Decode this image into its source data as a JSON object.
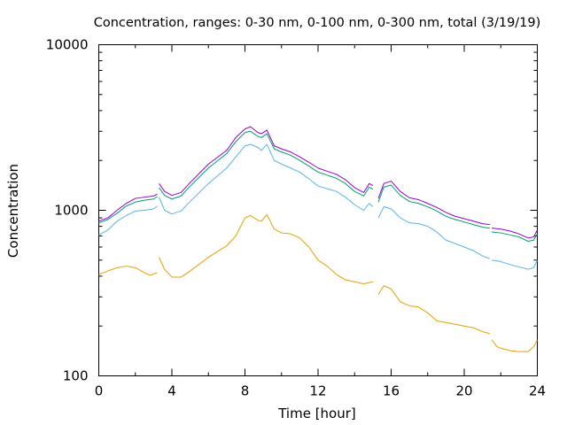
{
  "chart_data": {
    "type": "line",
    "title": "Concentration, ranges: 0-30 nm, 0-100 nm, 0-300 nm, total (3/19/19)",
    "xlabel": "Time [hour]",
    "ylabel": "Concentration",
    "xlim": [
      0,
      24
    ],
    "ylim": [
      100,
      10000
    ],
    "yscale": "log",
    "xticks": [
      "0",
      "4",
      "8",
      "12",
      "16",
      "20",
      "24"
    ],
    "yticks": [
      "100",
      "1000",
      "10000"
    ],
    "grid": false,
    "legend": "none",
    "series": [
      {
        "color": "#e69f00",
        "segments": [
          [
            [
              0,
              410
            ],
            [
              0.5,
              430
            ],
            [
              1,
              450
            ],
            [
              1.5,
              460
            ],
            [
              2,
              450
            ],
            [
              2.5,
              420
            ],
            [
              2.8,
              405
            ],
            [
              3.2,
              420
            ]
          ],
          [
            [
              3.3,
              520
            ],
            [
              3.6,
              440
            ],
            [
              4,
              395
            ],
            [
              4.5,
              395
            ],
            [
              5,
              430
            ],
            [
              6,
              520
            ],
            [
              7,
              610
            ],
            [
              7.5,
              700
            ],
            [
              8,
              900
            ],
            [
              8.3,
              930
            ],
            [
              8.7,
              870
            ],
            [
              8.9,
              860
            ],
            [
              9.2,
              940
            ],
            [
              9.6,
              770
            ],
            [
              10,
              730
            ],
            [
              10.5,
              720
            ],
            [
              11,
              680
            ],
            [
              11.5,
              600
            ],
            [
              12,
              500
            ],
            [
              12.5,
              460
            ],
            [
              13,
              410
            ],
            [
              13.5,
              380
            ],
            [
              14,
              370
            ],
            [
              14.5,
              360
            ],
            [
              15,
              370
            ]
          ],
          [
            [
              15.3,
              310
            ],
            [
              15.6,
              350
            ],
            [
              16,
              335
            ],
            [
              16.5,
              280
            ],
            [
              17,
              265
            ],
            [
              17.5,
              260
            ],
            [
              18,
              240
            ],
            [
              18.5,
              215
            ],
            [
              19,
              210
            ],
            [
              19.5,
              205
            ],
            [
              20,
              200
            ],
            [
              20.5,
              195
            ],
            [
              21,
              185
            ],
            [
              21.4,
              180
            ]
          ],
          [
            [
              21.5,
              165
            ],
            [
              21.8,
              150
            ],
            [
              22,
              147
            ],
            [
              22.5,
              142
            ],
            [
              23,
              140
            ],
            [
              23.5,
              140
            ],
            [
              23.8,
              150
            ],
            [
              24,
              165
            ]
          ]
        ]
      },
      {
        "color": "#56b4e9",
        "segments": [
          [
            [
              0,
              710
            ],
            [
              0.5,
              760
            ],
            [
              1,
              860
            ],
            [
              1.5,
              930
            ],
            [
              2,
              990
            ],
            [
              2.5,
              1000
            ],
            [
              3,
              1020
            ],
            [
              3.2,
              1060
            ]
          ],
          [
            [
              3.3,
              1200
            ],
            [
              3.6,
              1000
            ],
            [
              4,
              950
            ],
            [
              4.5,
              990
            ],
            [
              5,
              1130
            ],
            [
              6,
              1450
            ],
            [
              7,
              1800
            ],
            [
              7.5,
              2100
            ],
            [
              8,
              2450
            ],
            [
              8.3,
              2500
            ],
            [
              8.7,
              2400
            ],
            [
              8.9,
              2300
            ],
            [
              9.2,
              2500
            ],
            [
              9.6,
              2000
            ],
            [
              10,
              1900
            ],
            [
              10.5,
              1800
            ],
            [
              11,
              1700
            ],
            [
              11.5,
              1550
            ],
            [
              12,
              1400
            ],
            [
              12.5,
              1350
            ],
            [
              13,
              1300
            ],
            [
              13.5,
              1200
            ],
            [
              14,
              1080
            ],
            [
              14.5,
              1000
            ],
            [
              14.8,
              1100
            ],
            [
              15,
              1050
            ]
          ],
          [
            [
              15.3,
              900
            ],
            [
              15.6,
              1050
            ],
            [
              16,
              1020
            ],
            [
              16.5,
              900
            ],
            [
              17,
              840
            ],
            [
              17.5,
              830
            ],
            [
              18,
              800
            ],
            [
              18.5,
              740
            ],
            [
              19,
              660
            ],
            [
              19.5,
              630
            ],
            [
              20,
              600
            ],
            [
              20.5,
              570
            ],
            [
              21,
              530
            ],
            [
              21.4,
              510
            ]
          ],
          [
            [
              21.5,
              500
            ],
            [
              22,
              490
            ],
            [
              22.5,
              470
            ],
            [
              23,
              455
            ],
            [
              23.5,
              440
            ],
            [
              23.8,
              450
            ],
            [
              24,
              500
            ]
          ]
        ]
      },
      {
        "color": "#009e73",
        "segments": [
          [
            [
              0,
              840
            ],
            [
              0.5,
              880
            ],
            [
              1,
              960
            ],
            [
              1.5,
              1060
            ],
            [
              2,
              1120
            ],
            [
              2.5,
              1150
            ],
            [
              3,
              1170
            ],
            [
              3.2,
              1210
            ]
          ],
          [
            [
              3.3,
              1370
            ],
            [
              3.6,
              1230
            ],
            [
              4,
              1170
            ],
            [
              4.5,
              1220
            ],
            [
              5,
              1400
            ],
            [
              6,
              1800
            ],
            [
              7,
              2200
            ],
            [
              7.5,
              2600
            ],
            [
              8,
              2950
            ],
            [
              8.3,
              3000
            ],
            [
              8.7,
              2800
            ],
            [
              8.9,
              2750
            ],
            [
              9.2,
              2900
            ],
            [
              9.6,
              2350
            ],
            [
              10,
              2250
            ],
            [
              10.5,
              2150
            ],
            [
              11,
              2000
            ],
            [
              11.5,
              1850
            ],
            [
              12,
              1700
            ],
            [
              12.5,
              1630
            ],
            [
              13,
              1560
            ],
            [
              13.5,
              1450
            ],
            [
              14,
              1300
            ],
            [
              14.5,
              1220
            ],
            [
              14.8,
              1380
            ],
            [
              15,
              1340
            ]
          ],
          [
            [
              15.3,
              1120
            ],
            [
              15.6,
              1380
            ],
            [
              16,
              1420
            ],
            [
              16.5,
              1230
            ],
            [
              17,
              1130
            ],
            [
              17.5,
              1100
            ],
            [
              18,
              1050
            ],
            [
              18.5,
              990
            ],
            [
              19,
              920
            ],
            [
              19.5,
              880
            ],
            [
              20,
              850
            ],
            [
              20.5,
              820
            ],
            [
              21,
              790
            ],
            [
              21.4,
              780
            ]
          ],
          [
            [
              21.5,
              740
            ],
            [
              22,
              730
            ],
            [
              22.5,
              710
            ],
            [
              23,
              690
            ],
            [
              23.5,
              650
            ],
            [
              23.8,
              660
            ],
            [
              24,
              720
            ]
          ]
        ]
      },
      {
        "color": "#9400d3",
        "segments": [
          [
            [
              0,
              860
            ],
            [
              0.5,
              900
            ],
            [
              1,
              1000
            ],
            [
              1.5,
              1100
            ],
            [
              2,
              1180
            ],
            [
              2.5,
              1200
            ],
            [
              3,
              1220
            ],
            [
              3.2,
              1250
            ]
          ],
          [
            [
              3.3,
              1450
            ],
            [
              3.6,
              1300
            ],
            [
              4,
              1230
            ],
            [
              4.5,
              1280
            ],
            [
              5,
              1470
            ],
            [
              6,
              1900
            ],
            [
              7,
              2300
            ],
            [
              7.5,
              2750
            ],
            [
              8,
              3100
            ],
            [
              8.3,
              3200
            ],
            [
              8.7,
              2950
            ],
            [
              8.9,
              2900
            ],
            [
              9.2,
              3050
            ],
            [
              9.6,
              2450
            ],
            [
              10,
              2350
            ],
            [
              10.5,
              2250
            ],
            [
              11,
              2100
            ],
            [
              11.5,
              1950
            ],
            [
              12,
              1800
            ],
            [
              12.5,
              1720
            ],
            [
              13,
              1650
            ],
            [
              13.5,
              1530
            ],
            [
              14,
              1370
            ],
            [
              14.5,
              1280
            ],
            [
              14.8,
              1450
            ],
            [
              15,
              1410
            ]
          ],
          [
            [
              15.3,
              1180
            ],
            [
              15.6,
              1450
            ],
            [
              16,
              1500
            ],
            [
              16.5,
              1300
            ],
            [
              17,
              1190
            ],
            [
              17.5,
              1160
            ],
            [
              18,
              1100
            ],
            [
              18.5,
              1040
            ],
            [
              19,
              970
            ],
            [
              19.5,
              920
            ],
            [
              20,
              890
            ],
            [
              20.5,
              860
            ],
            [
              21,
              830
            ],
            [
              21.4,
              820
            ]
          ],
          [
            [
              21.5,
              780
            ],
            [
              22,
              770
            ],
            [
              22.5,
              750
            ],
            [
              23,
              720
            ],
            [
              23.5,
              680
            ],
            [
              23.8,
              690
            ],
            [
              24,
              760
            ]
          ]
        ]
      }
    ]
  }
}
